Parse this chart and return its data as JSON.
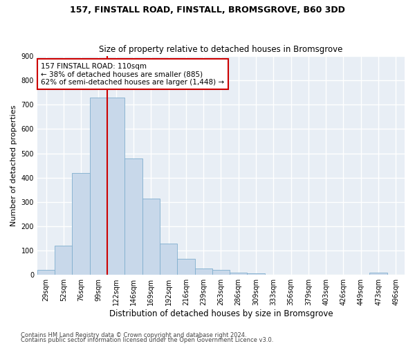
{
  "title": "157, FINSTALL ROAD, FINSTALL, BROMSGROVE, B60 3DD",
  "subtitle": "Size of property relative to detached houses in Bromsgrove",
  "xlabel": "Distribution of detached houses by size in Bromsgrove",
  "ylabel": "Number of detached properties",
  "bar_color": "#c8d8ea",
  "bar_edge_color": "#7faece",
  "bar_categories": [
    "29sqm",
    "52sqm",
    "76sqm",
    "99sqm",
    "122sqm",
    "146sqm",
    "169sqm",
    "192sqm",
    "216sqm",
    "239sqm",
    "263sqm",
    "286sqm",
    "309sqm",
    "333sqm",
    "356sqm",
    "379sqm",
    "403sqm",
    "426sqm",
    "449sqm",
    "473sqm",
    "496sqm"
  ],
  "bar_values": [
    20,
    120,
    420,
    730,
    730,
    480,
    315,
    130,
    65,
    25,
    20,
    10,
    7,
    2,
    0,
    0,
    0,
    0,
    0,
    8,
    0
  ],
  "vline_color": "#cc0000",
  "annotation_line1": "157 FINSTALL ROAD: 110sqm",
  "annotation_line2": "← 38% of detached houses are smaller (885)",
  "annotation_line3": "62% of semi-detached houses are larger (1,448) →",
  "annotation_box_color": "#ffffff",
  "annotation_box_edge": "#cc0000",
  "ylim": [
    0,
    900
  ],
  "yticks": [
    0,
    100,
    200,
    300,
    400,
    500,
    600,
    700,
    800,
    900
  ],
  "fig_background": "#ffffff",
  "plot_background": "#e8eef5",
  "grid_color": "#ffffff",
  "footer1": "Contains HM Land Registry data © Crown copyright and database right 2024.",
  "footer2": "Contains public sector information licensed under the Open Government Licence v3.0."
}
